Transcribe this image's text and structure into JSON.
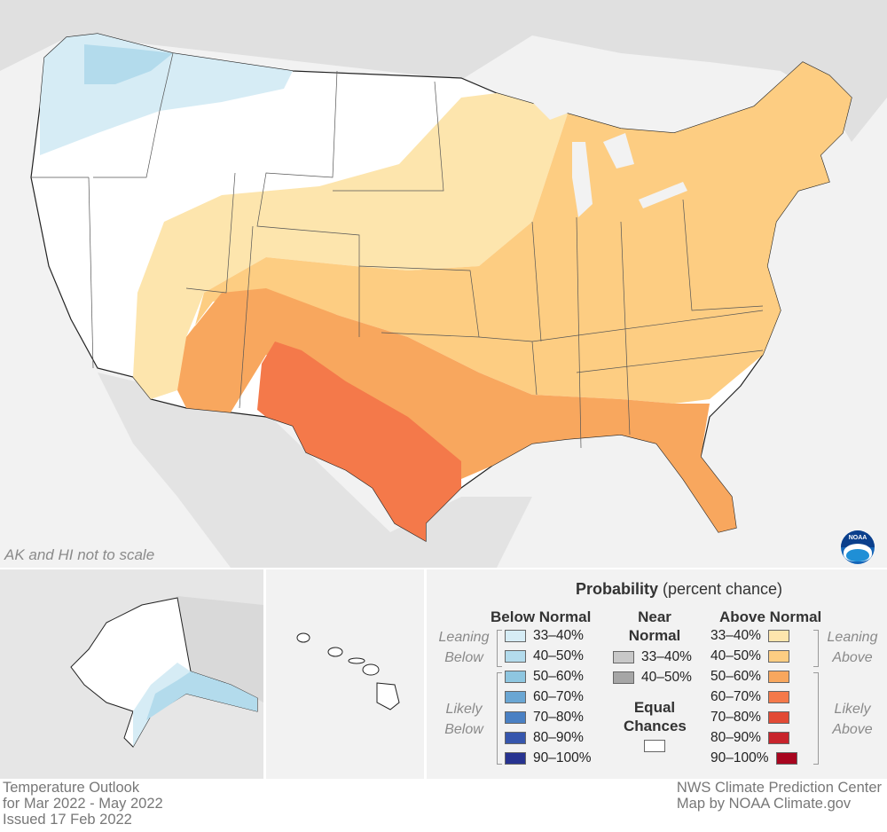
{
  "main_map": {
    "scale_note": "AK and HI not to scale",
    "logo_text": "NOAA"
  },
  "legend": {
    "title_bold": "Probability",
    "title_rest": " (percent chance)",
    "below": {
      "heading": "Below Normal",
      "leaning_label": "Leaning Below",
      "likely_label": "Likely Below",
      "items": [
        {
          "label": "33–40%",
          "color": "#d6ecf5"
        },
        {
          "label": "40–50%",
          "color": "#b3dbec"
        },
        {
          "label": "50–60%",
          "color": "#8ec6e0"
        },
        {
          "label": "60–70%",
          "color": "#6aa6d3"
        },
        {
          "label": "70–80%",
          "color": "#4a80c3"
        },
        {
          "label": "80–90%",
          "color": "#3656ad"
        },
        {
          "label": "90–100%",
          "color": "#273390"
        }
      ]
    },
    "near": {
      "heading_line1": "Near",
      "heading_line2": "Normal",
      "items": [
        {
          "label": "33–40%",
          "color": "#c8c8c8"
        },
        {
          "label": "40–50%",
          "color": "#a6a6a6"
        }
      ],
      "ec_line1": "Equal",
      "ec_line2": "Chances",
      "ec_color": "#ffffff"
    },
    "above": {
      "heading": "Above Normal",
      "leaning_label": "Leaning Above",
      "likely_label": "Likely Above",
      "items": [
        {
          "label": "33–40%",
          "color": "#fde5ad"
        },
        {
          "label": "40–50%",
          "color": "#fdcd82"
        },
        {
          "label": "50–60%",
          "color": "#f8a75e"
        },
        {
          "label": "60–70%",
          "color": "#f4794a"
        },
        {
          "label": "70–80%",
          "color": "#e24a35"
        },
        {
          "label": "80–90%",
          "color": "#c8242c"
        },
        {
          "label": "90–100%",
          "color": "#a8051f"
        }
      ]
    }
  },
  "footer": {
    "title": "Temperature Outlook",
    "period": "for Mar 2022 - May 2022",
    "issued": "Issued 17 Feb 2022",
    "source": "NWS Climate Prediction Center",
    "credit": "Map by NOAA Climate.gov"
  }
}
